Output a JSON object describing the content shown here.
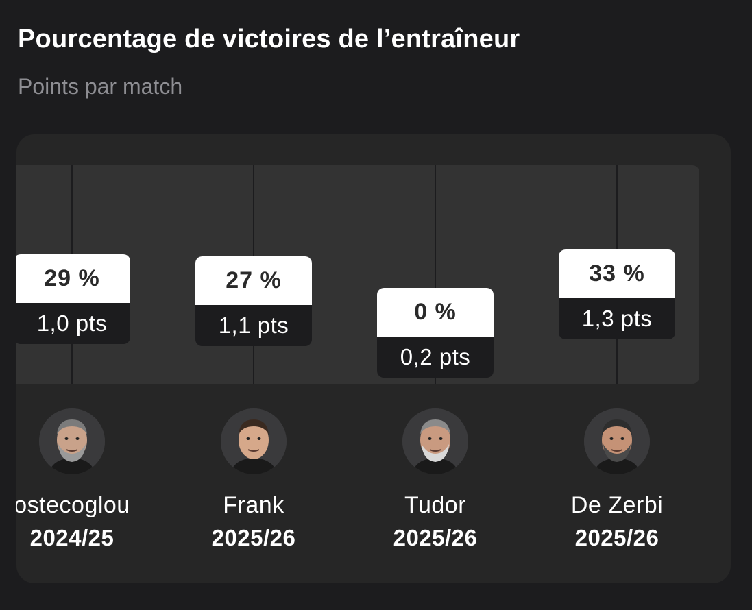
{
  "header": {
    "title": "Pourcentage de victoires de l’entraîneur",
    "subtitle": "Points par match"
  },
  "colors": {
    "background": "#1c1c1e",
    "card": "#262626",
    "plot_area": "#333333",
    "label_top": "#ffffff",
    "label_bottom": "#1c1c1e",
    "subtitle": "#8e8e93"
  },
  "chart_data": {
    "type": "bar",
    "categories": [
      "ostecoglou",
      "Frank",
      "Tudor",
      "De Zerbi"
    ],
    "series": [
      {
        "values": [
          29,
          27,
          0,
          33
        ]
      },
      {
        "values": [
          1.0,
          1.1,
          0.2,
          1.3
        ]
      }
    ],
    "ylim": [
      0,
      100
    ]
  },
  "coaches": [
    {
      "name": "ostecoglou",
      "season": "2024/25",
      "win_pct": "29 %",
      "ppm": "1,0 pts",
      "avatar_icon": "coach-photo-icon"
    },
    {
      "name": "Frank",
      "season": "2025/26",
      "win_pct": "27 %",
      "ppm": "1,1 pts",
      "avatar_icon": "coach-photo-icon"
    },
    {
      "name": "Tudor",
      "season": "2025/26",
      "win_pct": "0 %",
      "ppm": "0,2 pts",
      "avatar_icon": "coach-photo-icon"
    },
    {
      "name": "De Zerbi",
      "season": "2025/26",
      "win_pct": "33 %",
      "ppm": "1,3 pts",
      "avatar_icon": "coach-photo-icon"
    }
  ]
}
